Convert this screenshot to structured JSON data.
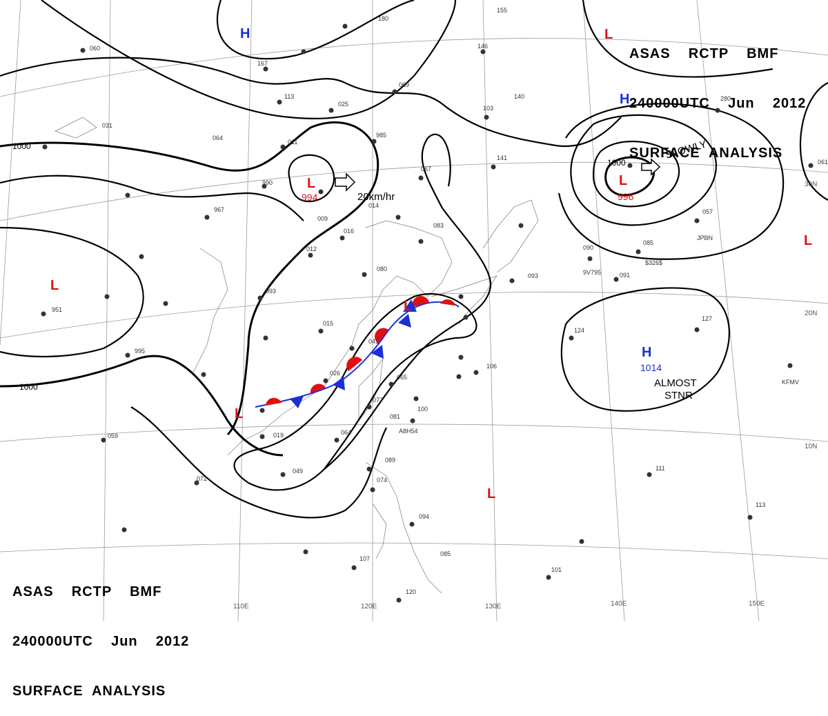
{
  "header": {
    "line1": "ASAS    RCTP    BMF",
    "line2": "240000UTC    Jun    2012",
    "line3": "SURFACE  ANALYSIS"
  },
  "footer": {
    "line1": "ASAS    RCTP    BMF",
    "line2": "240000UTC    Jun    2012",
    "line3": "SURFACE  ANALYSIS"
  },
  "longitude_labels": [
    "110E",
    "120E",
    "130E",
    "140E",
    "150E"
  ],
  "latitude_labels": [
    "30N",
    "20N",
    "10N"
  ],
  "isobar_labels": [
    "1000",
    "1000",
    "1000"
  ],
  "pressure_systems": [
    {
      "type": "H",
      "color": "#1a2fd6"
    },
    {
      "type": "H",
      "color": "#1a2fd6"
    },
    {
      "type": "H",
      "color": "#1a2fd6",
      "value": "1014"
    },
    {
      "type": "L",
      "color": "#e01010"
    },
    {
      "type": "L",
      "color": "#e01010",
      "value": "994"
    },
    {
      "type": "L",
      "color": "#e01010",
      "value": "996"
    },
    {
      "type": "L",
      "color": "#e01010"
    },
    {
      "type": "L",
      "color": "#e01010"
    },
    {
      "type": "L",
      "color": "#e01010"
    },
    {
      "type": "L",
      "color": "#e01010"
    }
  ],
  "motion_labels": {
    "low_west": "20km/hr",
    "low_east": "SLOWLY",
    "high_stnr_1": "ALMOST",
    "high_stnr_2": "STNR"
  },
  "front": {
    "type": "stationary",
    "warm_color": "#e01010",
    "cold_color": "#1a2fd6"
  },
  "station_values": [
    "180",
    "155",
    "146",
    "167",
    "069",
    "113",
    "025",
    "103",
    "140",
    "064",
    "011",
    "985",
    "067",
    "141",
    "990",
    "009",
    "014",
    "016",
    "083",
    "012",
    "993",
    "080",
    "015",
    "041",
    "026",
    "065",
    "077",
    "081",
    "100",
    "019",
    "064",
    "072",
    "049",
    "089",
    "074",
    "094",
    "106",
    "085",
    "107",
    "120",
    "101",
    "111",
    "113",
    "124",
    "127",
    "093",
    "091",
    "085",
    "057",
    "090",
    "951",
    "995",
    "059",
    "967",
    "031",
    "060",
    "280",
    "061"
  ],
  "station_callsigns": [
    "JPBN",
    "9V795",
    "$326$",
    "KFMV",
    "A8H54"
  ]
}
